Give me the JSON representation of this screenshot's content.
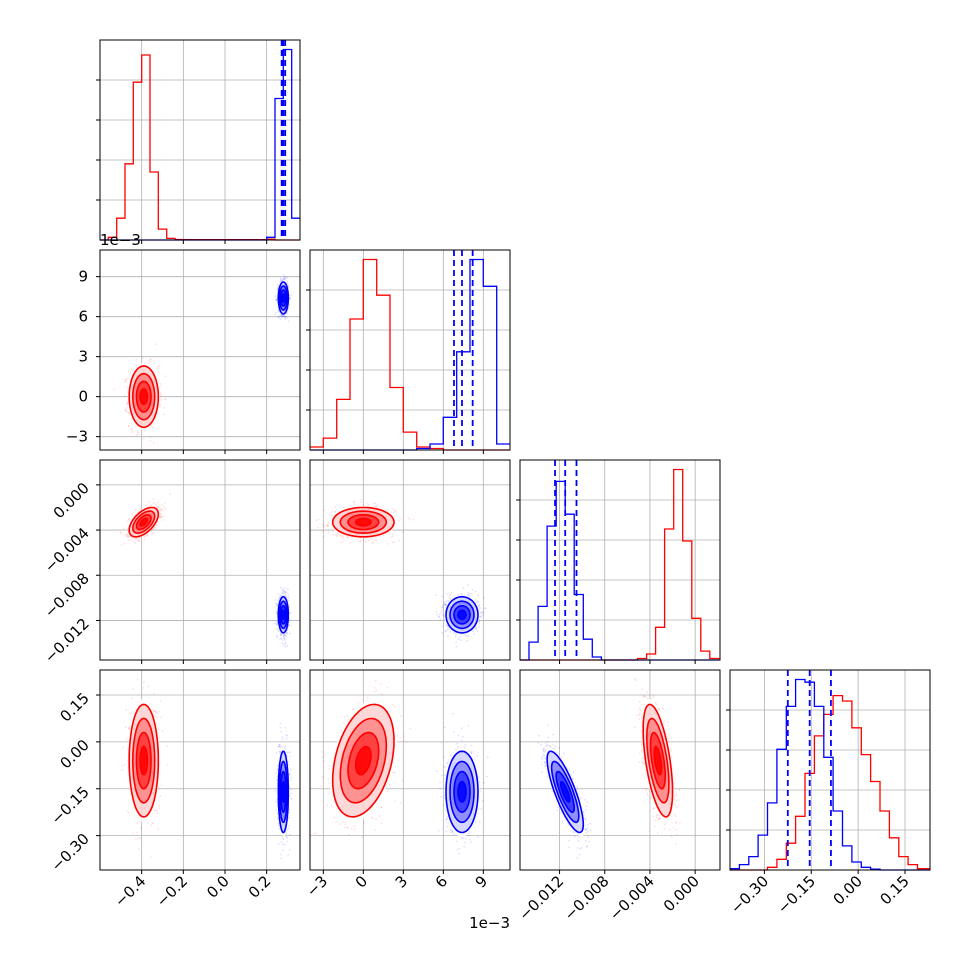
{
  "colors": {
    "series_a": "#ff0000",
    "series_b": "#0000ff",
    "grid": "#b0b0b0"
  },
  "chart_data": {
    "type": "corner",
    "dimensions": [
      {
        "range": [
          -0.6,
          0.36
        ],
        "ticks": [
          -0.4,
          -0.2,
          0.0,
          0.2
        ],
        "tick_labels": [
          "−0.4",
          "−0.2",
          "0.0",
          "0.2"
        ]
      },
      {
        "range": [
          -4.0,
          11.0
        ],
        "ticks": [
          -3,
          0,
          3,
          6,
          9
        ],
        "tick_labels": [
          "−3",
          "0",
          "3",
          "6",
          "9"
        ],
        "offset_text": "1e−3"
      },
      {
        "range": [
          -0.0155,
          0.0022
        ],
        "ticks": [
          -0.012,
          -0.008,
          -0.004,
          0.0
        ],
        "tick_labels": [
          "−0.012",
          "−0.008",
          "−0.004",
          "0.000"
        ]
      },
      {
        "range": [
          -0.41,
          0.23
        ],
        "ticks": [
          -0.3,
          -0.15,
          0.0,
          0.15
        ],
        "tick_labels": [
          "−0.30",
          "−0.15",
          "0.00",
          "0.15"
        ]
      }
    ],
    "series": [
      {
        "color": "#ff0000",
        "mean": [
          -0.39,
          0.0,
          -0.0033,
          -0.06
        ],
        "sd": [
          0.035,
          1.15,
          0.00065,
          0.09
        ],
        "corr": [
          [
            0,
            2,
            0.55
          ],
          [
            1,
            3,
            0.35
          ],
          [
            2,
            3,
            -0.55
          ]
        ]
      },
      {
        "color": "#0000ff",
        "mean": [
          0.28,
          7.4,
          -0.0115,
          -0.16
        ],
        "sd": [
          0.012,
          0.6,
          0.0008,
          0.065
        ],
        "corr": [
          [
            2,
            3,
            -0.8
          ]
        ]
      }
    ],
    "histograms": [
      {
        "dim": 0,
        "bins": [
          -0.6,
          -0.56,
          -0.52,
          -0.48,
          -0.44,
          -0.4,
          -0.36,
          -0.32,
          -0.28,
          -0.24,
          -0.2,
          -0.16,
          -0.12,
          -0.08,
          -0.04,
          0.0,
          0.04,
          0.08,
          0.12,
          0.16,
          0.2,
          0.24,
          0.28,
          0.32,
          0.36
        ],
        "counts": [
          {
            "color": "#ff0000",
            "values": [
              0,
              1,
              8,
              28,
              58,
              68,
              25,
              4,
              0.6,
              0.2,
              0.1,
              0.1,
              0.1,
              0.1,
              0.1,
              0.1,
              0.1,
              0.1,
              0.1,
              0.1,
              0.3,
              0,
              0,
              0
            ]
          },
          {
            "color": "#0000ff",
            "values": [
              0,
              0,
              0,
              0,
              0,
              0,
              0,
              0,
              0,
              0,
              0,
              0,
              0,
              0,
              0,
              0,
              0,
              0,
              0,
              0,
              1,
              52,
              70,
              8
            ]
          }
        ],
        "quantile_lines": [
          0.272,
          0.28,
          0.289
        ]
      },
      {
        "dim": 1,
        "bins": [
          -4.0,
          -3.0,
          -2.0,
          -1.0,
          0.0,
          1.0,
          2.0,
          3.0,
          4.0,
          5.0,
          6.0,
          7.0,
          8.0,
          9.0,
          10.0,
          11.0
        ],
        "counts": [
          {
            "color": "#ff0000",
            "values": [
              1,
              4,
              17,
              44,
              64,
              52,
              21,
              6,
              1,
              0.5,
              0,
              0,
              0,
              0,
              0
            ]
          },
          {
            "color": "#0000ff",
            "values": [
              0,
              0,
              0,
              0,
              0,
              0,
              0,
              0,
              0.5,
              2,
              11,
              33,
              64,
              55,
              2
            ]
          }
        ],
        "quantile_lines": [
          6.8,
          7.4,
          8.2
        ]
      },
      {
        "dim": 2,
        "bins": [
          -0.0155,
          -0.0147,
          -0.0139,
          -0.0131,
          -0.0123,
          -0.0115,
          -0.0107,
          -0.0099,
          -0.0091,
          -0.0083,
          -0.0075,
          -0.0067,
          -0.0059,
          -0.0051,
          -0.0043,
          -0.0035,
          -0.0027,
          -0.0019,
          -0.0011,
          -0.0003,
          0.0005,
          0.0013,
          0.0022
        ],
        "counts": [
          {
            "color": "#ff0000",
            "values": [
              0,
              0,
              0,
              0,
              0,
              0,
              0,
              0,
              0,
              0,
              0,
              0,
              0,
              0.5,
              2,
              11,
              44,
              64,
              40,
              14,
              3,
              0.5
            ]
          },
          {
            "color": "#0000ff",
            "values": [
              0,
              6,
              18,
              45,
              60,
              49,
              22,
              7,
              1,
              0,
              0,
              0,
              0,
              0,
              0,
              0,
              0,
              0,
              0,
              0,
              0,
              0
            ]
          }
        ],
        "quantile_lines": [
          -0.0124,
          -0.0115,
          -0.0105
        ]
      },
      {
        "dim": 3,
        "bins": [
          -0.41,
          -0.38,
          -0.35,
          -0.32,
          -0.29,
          -0.26,
          -0.23,
          -0.2,
          -0.17,
          -0.14,
          -0.11,
          -0.08,
          -0.05,
          -0.02,
          0.01,
          0.04,
          0.07,
          0.1,
          0.13,
          0.16,
          0.19,
          0.23
        ],
        "counts": [
          {
            "color": "#ff0000",
            "values": [
              0,
              0,
              0,
              0,
              1,
              4,
              10,
              20,
              36,
              50,
              58,
              65,
              63,
              53,
              43,
              33,
              22,
              12,
              5,
              2,
              0.5
            ]
          },
          {
            "color": "#0000ff",
            "values": [
              0.5,
              2,
              5,
              13,
              25,
              45,
              61,
              71,
              70,
              61,
              42,
              22,
              9,
              3,
              1,
              0.3,
              0,
              0,
              0,
              0,
              0
            ]
          }
        ],
        "quantile_lines": [
          -0.225,
          -0.155,
          -0.087
        ]
      }
    ]
  }
}
